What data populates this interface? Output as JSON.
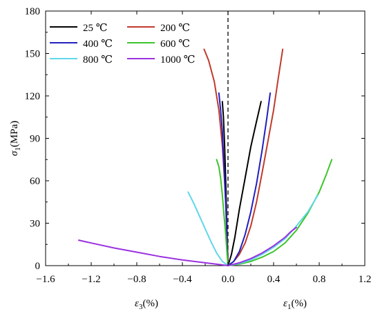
{
  "chart_data": {
    "type": "line",
    "xlim": [
      -1.6,
      1.2
    ],
    "ylim": [
      0,
      180
    ],
    "x_ticks": [
      -1.6,
      -1.2,
      -0.8,
      -0.4,
      0.0,
      0.4,
      0.8,
      1.2
    ],
    "x_tick_labels": [
      "−1.6",
      "−1.2",
      "−0.8",
      "−0.4",
      "0.0",
      "0.4",
      "0.8",
      "1.2"
    ],
    "y_ticks": [
      0,
      30,
      60,
      90,
      120,
      150,
      180
    ],
    "y_tick_labels": [
      "0",
      "30",
      "60",
      "90",
      "120",
      "150",
      "180"
    ],
    "ylabel": {
      "main": "σ",
      "sub": "1",
      "unit": "(MPa)"
    },
    "xlabel_left": {
      "main": "ε",
      "sub": "3",
      "unit": "(%)"
    },
    "xlabel_right": {
      "main": "ε",
      "sub": "1",
      "unit": "(%)"
    },
    "grid": false,
    "zero_line": {
      "x": 0,
      "style": "dashed"
    },
    "legend": {
      "placement": "top-left",
      "columns": 2
    },
    "series": [
      {
        "name": "25 ℃",
        "color": "#000000",
        "axial": [
          [
            0,
            0
          ],
          [
            0.03,
            8
          ],
          [
            0.06,
            20
          ],
          [
            0.1,
            40
          ],
          [
            0.15,
            62
          ],
          [
            0.2,
            84
          ],
          [
            0.25,
            102
          ],
          [
            0.29,
            116
          ]
        ],
        "lateral": [
          [
            0,
            0
          ],
          [
            -0.005,
            15
          ],
          [
            -0.012,
            35
          ],
          [
            -0.02,
            60
          ],
          [
            -0.03,
            85
          ],
          [
            -0.04,
            105
          ],
          [
            -0.05,
            116
          ]
        ]
      },
      {
        "name": "200 ℃",
        "color": "#c0392b",
        "axial": [
          [
            0,
            0
          ],
          [
            0.05,
            3
          ],
          [
            0.1,
            8
          ],
          [
            0.15,
            16
          ],
          [
            0.2,
            28
          ],
          [
            0.25,
            45
          ],
          [
            0.3,
            66
          ],
          [
            0.35,
            88
          ],
          [
            0.4,
            110
          ],
          [
            0.44,
            132
          ],
          [
            0.48,
            153
          ]
        ],
        "lateral": [
          [
            0,
            0
          ],
          [
            -0.005,
            15
          ],
          [
            -0.015,
            35
          ],
          [
            -0.03,
            60
          ],
          [
            -0.05,
            85
          ],
          [
            -0.08,
            110
          ],
          [
            -0.12,
            130
          ],
          [
            -0.17,
            145
          ],
          [
            -0.21,
            153
          ]
        ]
      },
      {
        "name": "400 ℃",
        "color": "#1f1fbf",
        "axial": [
          [
            0,
            0
          ],
          [
            0.05,
            3
          ],
          [
            0.1,
            10
          ],
          [
            0.15,
            22
          ],
          [
            0.2,
            38
          ],
          [
            0.25,
            58
          ],
          [
            0.3,
            82
          ],
          [
            0.34,
            104
          ],
          [
            0.37,
            122
          ]
        ],
        "lateral": [
          [
            0,
            0
          ],
          [
            -0.01,
            20
          ],
          [
            -0.02,
            45
          ],
          [
            -0.035,
            70
          ],
          [
            -0.05,
            95
          ],
          [
            -0.065,
            110
          ],
          [
            -0.08,
            122
          ]
        ]
      },
      {
        "name": "600 ℃",
        "color": "#3cc42a",
        "axial": [
          [
            0,
            0
          ],
          [
            0.1,
            1
          ],
          [
            0.2,
            3
          ],
          [
            0.3,
            6
          ],
          [
            0.4,
            10
          ],
          [
            0.5,
            16
          ],
          [
            0.6,
            25
          ],
          [
            0.7,
            37
          ],
          [
            0.8,
            52
          ],
          [
            0.86,
            64
          ],
          [
            0.91,
            75
          ]
        ],
        "lateral": [
          [
            0,
            0
          ],
          [
            -0.01,
            10
          ],
          [
            -0.02,
            22
          ],
          [
            -0.035,
            36
          ],
          [
            -0.05,
            50
          ],
          [
            -0.065,
            62
          ],
          [
            -0.08,
            70
          ],
          [
            -0.1,
            75
          ]
        ]
      },
      {
        "name": "800 ℃",
        "color": "#5fd7e9",
        "axial": [
          [
            0,
            0
          ],
          [
            0.1,
            1.5
          ],
          [
            0.2,
            4
          ],
          [
            0.3,
            8
          ],
          [
            0.4,
            13
          ],
          [
            0.5,
            19
          ],
          [
            0.6,
            28
          ],
          [
            0.7,
            38
          ],
          [
            0.79,
            50
          ]
        ],
        "lateral": [
          [
            0,
            0
          ],
          [
            -0.05,
            3
          ],
          [
            -0.1,
            9
          ],
          [
            -0.15,
            17
          ],
          [
            -0.2,
            26
          ],
          [
            -0.25,
            35
          ],
          [
            -0.3,
            44
          ],
          [
            -0.35,
            52
          ]
        ]
      },
      {
        "name": "1000 ℃",
        "color": "#9b30e0",
        "axial": [
          [
            0,
            0
          ],
          [
            0.1,
            2
          ],
          [
            0.2,
            5
          ],
          [
            0.3,
            9
          ],
          [
            0.4,
            14
          ],
          [
            0.5,
            20
          ],
          [
            0.55,
            24
          ],
          [
            0.6,
            27
          ]
        ],
        "lateral": [
          [
            0,
            0
          ],
          [
            -0.1,
            1
          ],
          [
            -0.2,
            2
          ],
          [
            -0.4,
            4
          ],
          [
            -0.6,
            6.5
          ],
          [
            -0.8,
            9.5
          ],
          [
            -1.0,
            12.5
          ],
          [
            -1.2,
            16
          ],
          [
            -1.31,
            18
          ]
        ]
      }
    ]
  }
}
